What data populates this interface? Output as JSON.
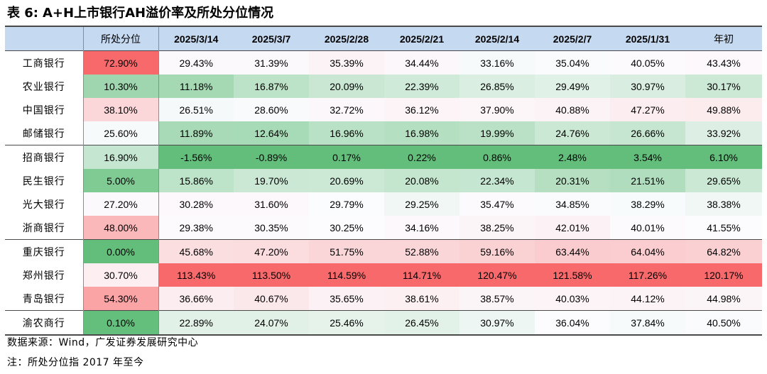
{
  "title": {
    "prefix": "表 6:",
    "text": "A+H上市银行AH溢价率及所处分位情况"
  },
  "table": {
    "header": [
      "",
      "所处分位",
      "2025/3/14",
      "2025/3/7",
      "2025/2/28",
      "2025/2/21",
      "2025/2/14",
      "2025/2/7",
      "2025/1/31",
      "年初"
    ],
    "rows": [
      [
        "工商银行",
        "72.90%",
        "29.43%",
        "31.39%",
        "35.39%",
        "34.44%",
        "33.16%",
        "35.04%",
        "40.05%",
        "43.43%"
      ],
      [
        "农业银行",
        "10.30%",
        "11.18%",
        "16.87%",
        "20.09%",
        "22.39%",
        "26.85%",
        "29.49%",
        "30.97%",
        "30.17%"
      ],
      [
        "中国银行",
        "38.10%",
        "26.51%",
        "28.60%",
        "32.72%",
        "36.12%",
        "37.90%",
        "40.88%",
        "47.27%",
        "49.88%"
      ],
      [
        "邮储银行",
        "25.60%",
        "11.89%",
        "12.64%",
        "16.96%",
        "16.98%",
        "19.99%",
        "24.76%",
        "26.66%",
        "33.92%"
      ],
      [
        "招商银行",
        "16.90%",
        "-1.56%",
        "-0.89%",
        "0.17%",
        "0.22%",
        "0.86%",
        "2.48%",
        "3.54%",
        "6.10%"
      ],
      [
        "民生银行",
        "5.00%",
        "15.86%",
        "19.70%",
        "20.69%",
        "20.08%",
        "22.34%",
        "20.31%",
        "21.51%",
        "29.65%"
      ],
      [
        "光大银行",
        "27.20%",
        "30.28%",
        "31.60%",
        "29.79%",
        "29.25%",
        "35.47%",
        "34.85%",
        "38.29%",
        "38.38%"
      ],
      [
        "浙商银行",
        "48.00%",
        "29.38%",
        "30.35%",
        "30.25%",
        "34.16%",
        "38.25%",
        "42.01%",
        "40.01%",
        "41.55%"
      ],
      [
        "重庆银行",
        "0.00%",
        "45.68%",
        "47.20%",
        "51.75%",
        "52.88%",
        "59.16%",
        "63.44%",
        "64.04%",
        "64.82%"
      ],
      [
        "郑州银行",
        "30.70%",
        "113.43%",
        "113.50%",
        "114.59%",
        "114.71%",
        "120.47%",
        "121.58%",
        "117.26%",
        "120.17%"
      ],
      [
        "青岛银行",
        "54.30%",
        "36.66%",
        "40.67%",
        "35.65%",
        "38.61%",
        "38.57%",
        "40.03%",
        "44.12%",
        "44.98%"
      ],
      [
        "渝农商行",
        "0.10%",
        "22.89%",
        "24.07%",
        "25.46%",
        "26.45%",
        "30.97%",
        "36.04%",
        "37.84%",
        "40.50%"
      ]
    ],
    "group_starts": [
      0,
      4,
      8,
      11
    ],
    "heatmap_colors": {
      "low": "#63be7b",
      "mid": "#fcfcff",
      "high": "#f8696b"
    },
    "header_bg": "#c5d9f1"
  },
  "footnotes": {
    "source": "数据来源：Wind，广发证券发展研究中心",
    "note": "注：所处分位指 2017 年至今"
  }
}
